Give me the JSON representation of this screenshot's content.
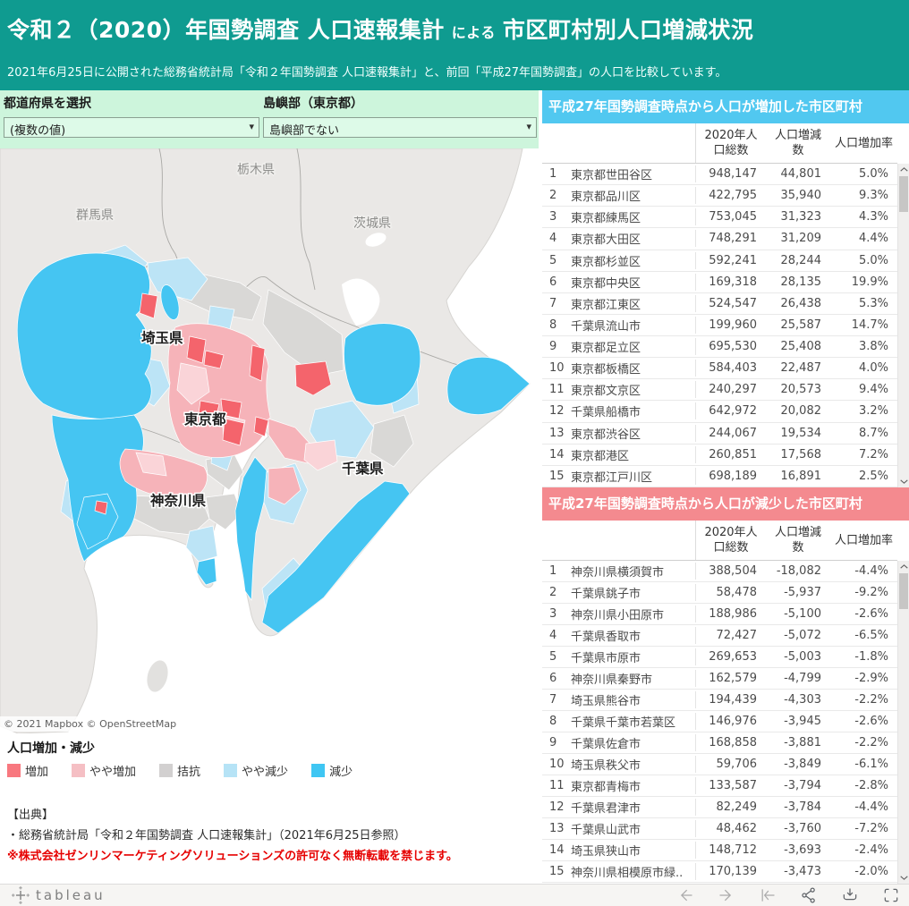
{
  "header": {
    "title_main": "令和２（2020）年国勢調査 人口速報集計",
    "title_connector": "による",
    "title_sub": "市区町村別人口増減状況",
    "subtitle": "2021年6月25日に公開された総務省統計局「令和２年国勢調査 人口速報集計」と、前回「平成27年国勢調査」の人口を比較しています。",
    "bg_color": "#0f9b90"
  },
  "filters": {
    "prefecture": {
      "label": "都道府県を選択",
      "value": "(複数の値)"
    },
    "island": {
      "label": "島嶼部（東京都）",
      "value": "島嶼部でない"
    }
  },
  "map": {
    "attribution": "© 2021 Mapbox © OpenStreetMap",
    "labels": {
      "tochigi": "栃木県",
      "gunma": "群馬県",
      "ibaraki": "茨城県",
      "saitama": "埼玉県",
      "tokyo": "東京都",
      "chiba": "千葉県",
      "kanagawa": "神奈川県"
    },
    "colors": {
      "increase": "#f4646c",
      "slight_increase": "#f6b3b9",
      "even": "#d9d8d6",
      "slight_decrease": "#bce4f6",
      "decrease": "#45c5f2",
      "land": "#eae8e6",
      "sea": "#ffffff"
    }
  },
  "legend": {
    "title": "人口増加・減少",
    "items": [
      {
        "label": "増加",
        "color": "#f8787f"
      },
      {
        "label": "やや増加",
        "color": "#f5bfc4"
      },
      {
        "label": "拮抗",
        "color": "#d2d0d0"
      },
      {
        "label": "やや減少",
        "color": "#b6e3f6"
      },
      {
        "label": "減少",
        "color": "#3fc6f3"
      }
    ]
  },
  "notes": {
    "heading": "【出典】",
    "source": "・総務省統計局「令和２年国勢調査 人口速報集計」（2021年6月25日参照）",
    "warning": "※株式会社ゼンリンマーケティングソリューションズの許可なく無断転載を禁じます。"
  },
  "tables": {
    "increase": {
      "title": "平成27年国勢調査時点から人口が増加した市区町村",
      "bar_color": "#51c8f0",
      "columns": [
        "2020年人口総数",
        "人口増減数",
        "人口増加率"
      ],
      "rows": [
        [
          "1",
          "東京都世田谷区",
          "948,147",
          "44,801",
          "5.0%"
        ],
        [
          "2",
          "東京都品川区",
          "422,795",
          "35,940",
          "9.3%"
        ],
        [
          "3",
          "東京都練馬区",
          "753,045",
          "31,323",
          "4.3%"
        ],
        [
          "4",
          "東京都大田区",
          "748,291",
          "31,209",
          "4.4%"
        ],
        [
          "5",
          "東京都杉並区",
          "592,241",
          "28,244",
          "5.0%"
        ],
        [
          "6",
          "東京都中央区",
          "169,318",
          "28,135",
          "19.9%"
        ],
        [
          "7",
          "東京都江東区",
          "524,547",
          "26,438",
          "5.3%"
        ],
        [
          "8",
          "千葉県流山市",
          "199,960",
          "25,587",
          "14.7%"
        ],
        [
          "9",
          "東京都足立区",
          "695,530",
          "25,408",
          "3.8%"
        ],
        [
          "10",
          "東京都板橋区",
          "584,403",
          "22,487",
          "4.0%"
        ],
        [
          "11",
          "東京都文京区",
          "240,297",
          "20,573",
          "9.4%"
        ],
        [
          "12",
          "千葉県船橋市",
          "642,972",
          "20,082",
          "3.2%"
        ],
        [
          "13",
          "東京都渋谷区",
          "244,067",
          "19,534",
          "8.7%"
        ],
        [
          "14",
          "東京都港区",
          "260,851",
          "17,568",
          "7.2%"
        ],
        [
          "15",
          "東京都江戸川区",
          "698,189",
          "16,891",
          "2.5%"
        ]
      ]
    },
    "decrease": {
      "title": "平成27年国勢調査時点から人口が減少した市区町村",
      "bar_color": "#f48a8f",
      "columns": [
        "2020年人口総数",
        "人口増減数",
        "人口増加率"
      ],
      "rows": [
        [
          "1",
          "神奈川県横須賀市",
          "388,504",
          "-18,082",
          "-4.4%"
        ],
        [
          "2",
          "千葉県銚子市",
          "58,478",
          "-5,937",
          "-9.2%"
        ],
        [
          "3",
          "神奈川県小田原市",
          "188,986",
          "-5,100",
          "-2.6%"
        ],
        [
          "4",
          "千葉県香取市",
          "72,427",
          "-5,072",
          "-6.5%"
        ],
        [
          "5",
          "千葉県市原市",
          "269,653",
          "-5,003",
          "-1.8%"
        ],
        [
          "6",
          "神奈川県秦野市",
          "162,579",
          "-4,799",
          "-2.9%"
        ],
        [
          "7",
          "埼玉県熊谷市",
          "194,439",
          "-4,303",
          "-2.2%"
        ],
        [
          "8",
          "千葉県千葉市若葉区",
          "146,976",
          "-3,945",
          "-2.6%"
        ],
        [
          "9",
          "千葉県佐倉市",
          "168,858",
          "-3,881",
          "-2.2%"
        ],
        [
          "10",
          "埼玉県秩父市",
          "59,706",
          "-3,849",
          "-6.1%"
        ],
        [
          "11",
          "東京都青梅市",
          "133,587",
          "-3,794",
          "-2.8%"
        ],
        [
          "12",
          "千葉県君津市",
          "82,249",
          "-3,784",
          "-4.4%"
        ],
        [
          "13",
          "千葉県山武市",
          "48,462",
          "-3,760",
          "-7.2%"
        ],
        [
          "14",
          "埼玉県狭山市",
          "148,712",
          "-3,693",
          "-2.4%"
        ],
        [
          "15",
          "神奈川県相模原市緑..",
          "170,139",
          "-3,473",
          "-2.0%"
        ]
      ]
    }
  },
  "footer": {
    "brand": "tableau"
  }
}
